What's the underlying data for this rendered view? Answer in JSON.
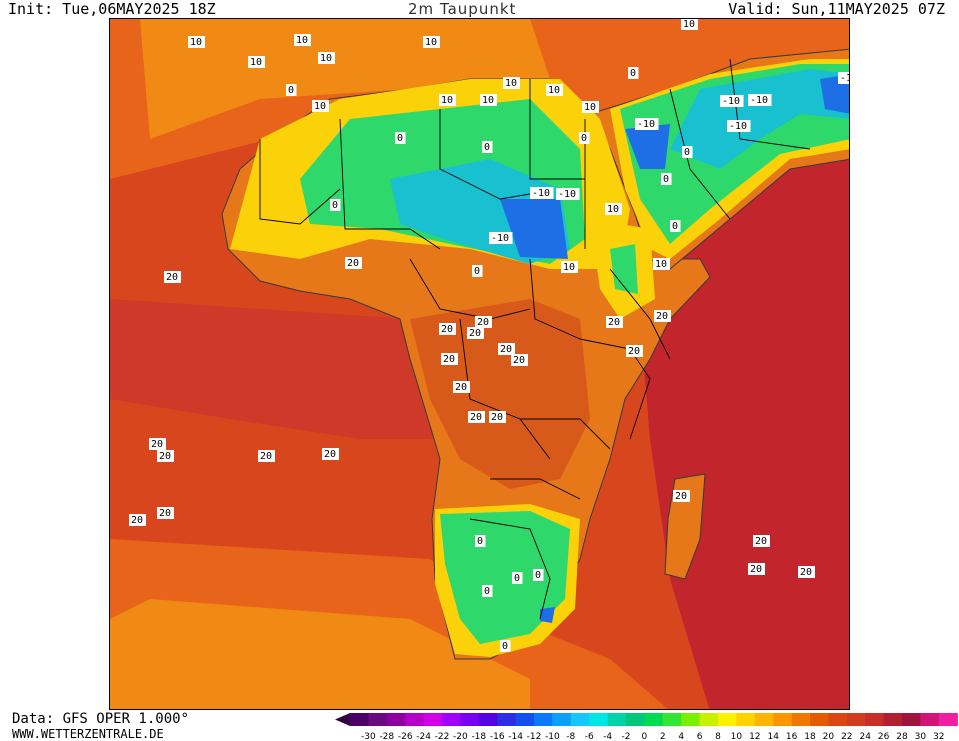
{
  "header": {
    "init": "Init: Tue,06MAY2025 18Z",
    "title": "2m Taupunkt",
    "valid": "Valid: Sun,11MAY2025 07Z"
  },
  "footer": {
    "source": "Data: GFS OPER 1.000°",
    "site": "WWW.WETTERZENTRALE.DE"
  },
  "colorbar": {
    "ticks": [
      "-30",
      "-28",
      "-26",
      "-24",
      "-22",
      "-20",
      "-18",
      "-16",
      "-14",
      "-12",
      "-10",
      "-8",
      "-6",
      "-4",
      "-2",
      "0",
      "2",
      "4",
      "6",
      "8",
      "10",
      "12",
      "14",
      "16",
      "18",
      "20",
      "22",
      "24",
      "26",
      "28",
      "30",
      "32"
    ],
    "colors": [
      "#4c0066",
      "#6a0a82",
      "#8c00a0",
      "#b400c8",
      "#d200e6",
      "#a000ff",
      "#7a00f0",
      "#5500e6",
      "#2d2de6",
      "#1450f0",
      "#0a78ff",
      "#0aa0ff",
      "#14c8ff",
      "#00e6e6",
      "#00d2aa",
      "#00c878",
      "#00dc50",
      "#32e632",
      "#78f000",
      "#c8f000",
      "#fff000",
      "#ffd200",
      "#ffb400",
      "#ff9600",
      "#f07800",
      "#e65a00",
      "#dc4614",
      "#d23c1e",
      "#c82d28",
      "#b41e32",
      "#a0143c",
      "#d21478",
      "#f01ea0"
    ],
    "under_color": "#330044",
    "over_color": "#ff3cb4"
  },
  "colors": {
    "sea_warm": "#d8461e",
    "sea_hot": "#c2252c",
    "sea_mild": "#e8641a",
    "sea_cool": "#f08a14",
    "land_warm": "#e6781a",
    "land_yellow": "#fbd20a",
    "land_green": "#2fd86a",
    "land_cyan": "#18c0d0",
    "land_blue": "#1e6fe6",
    "border": "#000000",
    "coast": "#3a3a3a"
  },
  "labels": [
    "10",
    "10",
    "10",
    "10",
    "10",
    "10",
    "10",
    "10",
    "10",
    "10",
    "10",
    "10",
    "10",
    "10",
    "10",
    "0",
    "0",
    "0",
    "0",
    "0",
    "0",
    "0",
    "0",
    "0",
    "0",
    "0",
    "0",
    "0",
    "0",
    "0",
    "-10",
    "-10",
    "-10",
    "-10",
    "-10",
    "-10",
    "-10",
    "-10",
    "20",
    "20",
    "20",
    "20",
    "20",
    "20",
    "20",
    "20",
    "20",
    "20",
    "20",
    "20",
    "20",
    "20",
    "20",
    "20",
    "20",
    "20",
    "20",
    "20",
    "20",
    "20",
    "20",
    "20"
  ]
}
